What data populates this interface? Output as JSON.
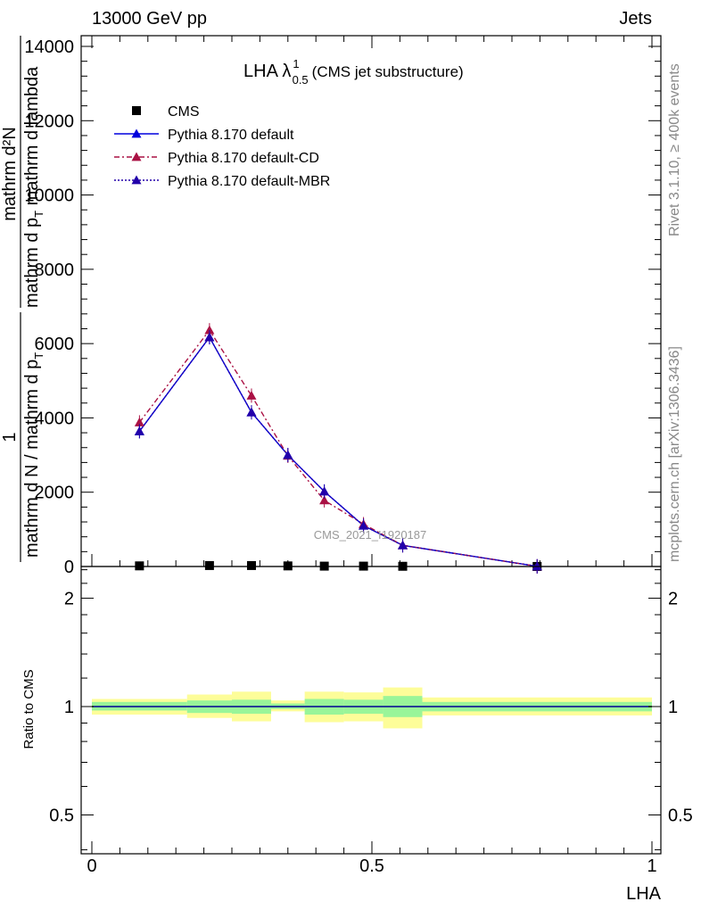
{
  "header": {
    "left": "13000 GeV pp",
    "right": "Jets"
  },
  "side_labels": {
    "rivet": "Rivet 3.1.10, ≥ 400k events",
    "mcplots": "mcplots.cern.ch [arXiv:1306.3436]"
  },
  "watermark": "CMS_2021_I1920187",
  "chart_data": [
    {
      "type": "line",
      "title_main": "LHA λ",
      "title_sup": "1",
      "title_sub": "0.5",
      "title_suffix": "(CMS jet substructure)",
      "ylabel_numer": "mathrm d²N",
      "ylabel_denom_a": "mathrm d p",
      "ylabel_denom_sub": "T",
      "ylabel_denom_b": " mathrm d lambda",
      "ylabel_prefix_numer": "1",
      "ylabel_prefix_denom": "mathrm d N / mathrm d p",
      "ylabel_prefix_sub": "T",
      "xlim": [
        0,
        1
      ],
      "ylim": [
        0,
        14000
      ],
      "y_ticks": [
        0,
        2000,
        4000,
        6000,
        8000,
        10000,
        12000,
        14000
      ],
      "y_tick_labels": [
        "0",
        "2000",
        "4000",
        "6000",
        "8000",
        "10000",
        "12000",
        "14000"
      ],
      "x": [
        0.085,
        0.21,
        0.285,
        0.35,
        0.415,
        0.485,
        0.555,
        0.795
      ],
      "series": [
        {
          "name": "CMS",
          "style": "square",
          "color": "#000000",
          "values": [
            17,
            26,
            26,
            16,
            10,
            10,
            6,
            1
          ]
        },
        {
          "name": "Pythia 8.170 default",
          "style": "solid",
          "color": "#0000dd",
          "values": [
            3640,
            6170,
            4150,
            3000,
            2020,
            1100,
            570,
            5
          ]
        },
        {
          "name": "Pythia 8.170 default-CD",
          "style": "dashdot",
          "color": "#aa1144",
          "values": [
            3880,
            6360,
            4600,
            2980,
            1780,
            1140,
            570,
            5
          ]
        },
        {
          "name": "Pythia 8.170 default-MBR",
          "style": "dotted",
          "color": "#2200aa",
          "values": [
            3640,
            6170,
            4150,
            3000,
            2020,
            1100,
            570,
            5
          ]
        }
      ],
      "legend_position": "top-left"
    },
    {
      "type": "line",
      "ylabel": "Ratio to CMS",
      "xlabel": "LHA",
      "xlim": [
        0,
        1
      ],
      "ylim": [
        0.39,
        2.45
      ],
      "scale": "log",
      "x_ticks": [
        0,
        0.5,
        1
      ],
      "x_tick_labels": [
        "0",
        "0.5",
        "1"
      ],
      "y_ticks": [
        0.5,
        1,
        2
      ],
      "y_tick_labels": [
        "0.5",
        "1",
        "2"
      ],
      "reference": 1,
      "bins": [
        {
          "lo": 0.0,
          "hi": 0.17,
          "inner": [
            0.975,
            1.03
          ],
          "outer": [
            0.95,
            1.05
          ]
        },
        {
          "lo": 0.17,
          "hi": 0.25,
          "inner": [
            0.96,
            1.04
          ],
          "outer": [
            0.93,
            1.08
          ]
        },
        {
          "lo": 0.25,
          "hi": 0.32,
          "inner": [
            0.955,
            1.045
          ],
          "outer": [
            0.91,
            1.1
          ]
        },
        {
          "lo": 0.32,
          "hi": 0.38,
          "inner": [
            0.985,
            1.02
          ],
          "outer": [
            0.97,
            1.04
          ]
        },
        {
          "lo": 0.38,
          "hi": 0.45,
          "inner": [
            0.95,
            1.05
          ],
          "outer": [
            0.905,
            1.1
          ]
        },
        {
          "lo": 0.45,
          "hi": 0.52,
          "inner": [
            0.955,
            1.045
          ],
          "outer": [
            0.91,
            1.095
          ]
        },
        {
          "lo": 0.52,
          "hi": 0.59,
          "inner": [
            0.935,
            1.07
          ],
          "outer": [
            0.87,
            1.13
          ]
        },
        {
          "lo": 0.59,
          "hi": 1.0,
          "inner": [
            0.97,
            1.03
          ],
          "outer": [
            0.945,
            1.06
          ]
        }
      ],
      "colors": {
        "inner": "#99f599",
        "outer": "#fdfd99"
      }
    }
  ]
}
